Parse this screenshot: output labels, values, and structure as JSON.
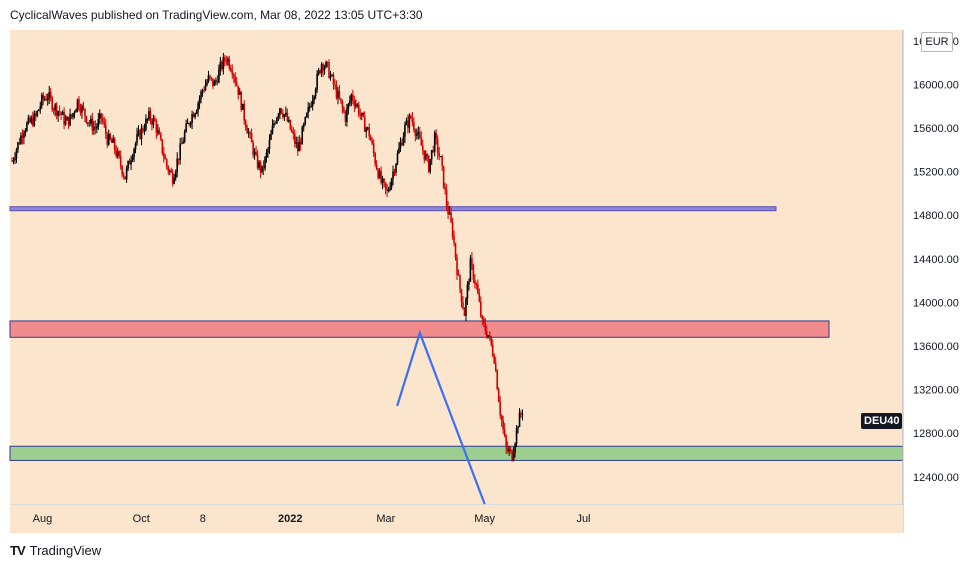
{
  "header": {
    "published_text": "CyclicalWaves published on TradingView.com, Mar 08, 2022 13:05 UTC+3:30"
  },
  "footer": {
    "logo_mark": "TV",
    "brand": "TradingView"
  },
  "colors": {
    "background": "#fbe5cc",
    "up_candle": "#000000",
    "down_candle": "#d40000",
    "resistance_zone": "#f28b8b",
    "support_zone": "#9ccf8f",
    "zone_border": "#2f3a8f",
    "projection_line": "#3b6ff5",
    "horizontal_line": "#5a4fb0"
  },
  "chart_data": {
    "type": "candlestick",
    "symbol_label": "DEU40",
    "unit": "EUR",
    "ylim": [
      12150,
      16500
    ],
    "y_ticks": [
      "12400.00",
      "12800.00",
      "13200.00",
      "13600.00",
      "14000.00",
      "14400.00",
      "14800.00",
      "15200.00",
      "15600.00",
      "16000.00",
      "16400.00"
    ],
    "x_ticks": [
      "Aug",
      "Oct",
      "8",
      "2022",
      "Mar",
      "May",
      "Jul"
    ],
    "series": [
      {
        "kind": "daily_close_approx",
        "values": [
          15300,
          15450,
          15600,
          15650,
          15700,
          15850,
          15900,
          15800,
          15750,
          15650,
          15700,
          15850,
          15750,
          15650,
          15600,
          15700,
          15500,
          15450,
          15300,
          15150,
          15350,
          15500,
          15600,
          15700,
          15650,
          15450,
          15250,
          15150,
          15350,
          15550,
          15700,
          15800,
          15950,
          16050,
          16000,
          16150,
          16250,
          16150,
          15950,
          15700,
          15500,
          15300,
          15200,
          15400,
          15650,
          15800,
          15700,
          15550,
          15400,
          15600,
          15800,
          16000,
          16200,
          16150,
          16000,
          15850,
          15700,
          15900,
          15800,
          15650,
          15550,
          15300,
          15100,
          15000,
          15200,
          15400,
          15600,
          15700,
          15550,
          15400,
          15250,
          15500,
          15300,
          14900,
          14650,
          14200,
          13900,
          14350,
          14150,
          13800,
          13700,
          13500,
          13000,
          12650,
          12600,
          12900,
          13050
        ]
      }
    ],
    "zones": [
      {
        "name": "resistance",
        "from": 13680,
        "to": 13830
      },
      {
        "name": "support",
        "from": 12550,
        "to": 12680
      }
    ],
    "horizontal_lines": [
      14860
    ],
    "projection_path": [
      {
        "date": "2022-03-08",
        "price": 13050
      },
      {
        "date": "2022-03-22",
        "price": 13720
      },
      {
        "date": "2022-05-01",
        "price": 12150
      }
    ],
    "last_value_tag": "DEU40"
  }
}
